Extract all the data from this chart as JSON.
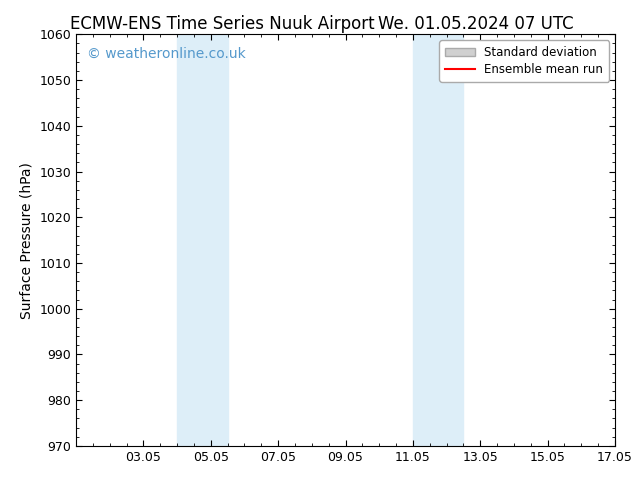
{
  "title_left": "ECMW-ENS Time Series Nuuk Airport",
  "title_right": "We. 01.05.2024 07 UTC",
  "ylabel": "Surface Pressure (hPa)",
  "ylim": [
    970,
    1060
  ],
  "yticks": [
    970,
    980,
    990,
    1000,
    1010,
    1020,
    1030,
    1040,
    1050,
    1060
  ],
  "xlim": [
    1.0,
    17.0
  ],
  "xtick_labels": [
    "03.05",
    "05.05",
    "07.05",
    "09.05",
    "11.05",
    "13.05",
    "15.05",
    "17.05"
  ],
  "xtick_positions": [
    3,
    5,
    7,
    9,
    11,
    13,
    15,
    17
  ],
  "shaded_bands": [
    {
      "x_start": 4.0,
      "x_end": 5.5,
      "color": "#ddeef8",
      "alpha": 1.0
    },
    {
      "x_start": 11.0,
      "x_end": 12.5,
      "color": "#ddeef8",
      "alpha": 1.0
    }
  ],
  "watermark_text": "© weatheronline.co.uk",
  "watermark_color": "#5599cc",
  "legend_entries": [
    {
      "label": "Standard deviation",
      "type": "patch",
      "color": "#d0d0d0"
    },
    {
      "label": "Ensemble mean run",
      "type": "line",
      "color": "#ff0000"
    }
  ],
  "background_color": "#ffffff",
  "title_fontsize": 12,
  "axis_label_fontsize": 10,
  "tick_fontsize": 9,
  "watermark_fontsize": 10
}
